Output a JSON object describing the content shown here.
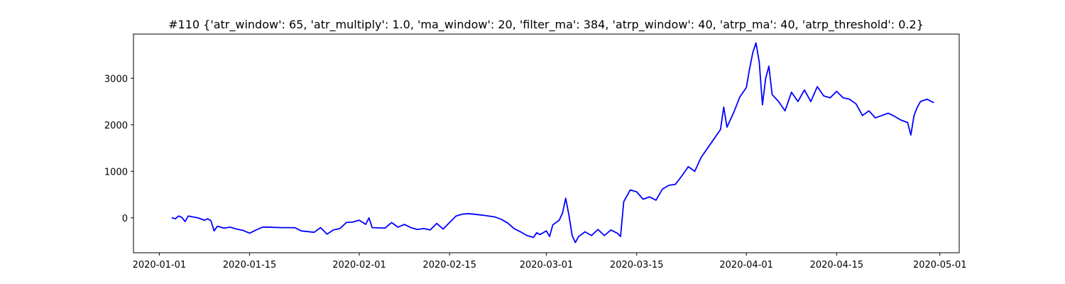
{
  "chart_data": {
    "type": "line",
    "title": "#110 {'atr_window': 65, 'atr_multiply': 1.0, 'ma_window': 20, 'filter_ma': 384, 'atrp_window': 40, 'atrp_ma': 40, 'atrp_threshold': 0.2}",
    "xlabel": "",
    "ylabel": "",
    "x_type": "date",
    "xlim": [
      "2019-12-28",
      "2020-05-04"
    ],
    "ylim": [
      -750,
      3950
    ],
    "grid": false,
    "legend": "none",
    "line_color": "#0000ff",
    "x_ticks": [
      {
        "date": "2020-01-01",
        "label": "2020-01-01"
      },
      {
        "date": "2020-01-15",
        "label": "2020-01-15"
      },
      {
        "date": "2020-02-01",
        "label": "2020-02-01"
      },
      {
        "date": "2020-02-15",
        "label": "2020-02-15"
      },
      {
        "date": "2020-03-01",
        "label": "2020-03-01"
      },
      {
        "date": "2020-03-15",
        "label": "2020-03-15"
      },
      {
        "date": "2020-04-01",
        "label": "2020-04-01"
      },
      {
        "date": "2020-04-15",
        "label": "2020-04-15"
      },
      {
        "date": "2020-05-01",
        "label": "2020-05-01"
      }
    ],
    "y_ticks": [
      {
        "value": 0,
        "label": "0"
      },
      {
        "value": 1000,
        "label": "1000"
      },
      {
        "value": 2000,
        "label": "2000"
      },
      {
        "value": 3000,
        "label": "3000"
      }
    ],
    "series": [
      {
        "color": "#0000ff",
        "points": [
          [
            "2020-01-03",
            0
          ],
          [
            "2020-01-03 12:00",
            -20
          ],
          [
            "2020-01-04",
            40
          ],
          [
            "2020-01-04 12:00",
            10
          ],
          [
            "2020-01-05",
            -80
          ],
          [
            "2020-01-05 12:00",
            40
          ],
          [
            "2020-01-07",
            0
          ],
          [
            "2020-01-08",
            -50
          ],
          [
            "2020-01-08 12:00",
            -20
          ],
          [
            "2020-01-09",
            -60
          ],
          [
            "2020-01-09 12:00",
            -280
          ],
          [
            "2020-01-10",
            -180
          ],
          [
            "2020-01-11",
            -220
          ],
          [
            "2020-01-12",
            -200
          ],
          [
            "2020-01-13",
            -240
          ],
          [
            "2020-01-14",
            -270
          ],
          [
            "2020-01-15",
            -330
          ],
          [
            "2020-01-16",
            -260
          ],
          [
            "2020-01-17",
            -200
          ],
          [
            "2020-01-18",
            -200
          ],
          [
            "2020-01-20",
            -210
          ],
          [
            "2020-01-22",
            -210
          ],
          [
            "2020-01-23",
            -280
          ],
          [
            "2020-01-25",
            -310
          ],
          [
            "2020-01-26",
            -210
          ],
          [
            "2020-01-27",
            -350
          ],
          [
            "2020-01-28",
            -260
          ],
          [
            "2020-01-29",
            -230
          ],
          [
            "2020-01-30",
            -100
          ],
          [
            "2020-01-31",
            -90
          ],
          [
            "2020-02-01",
            -50
          ],
          [
            "2020-02-02",
            -140
          ],
          [
            "2020-02-02 12:00",
            0
          ],
          [
            "2020-02-03",
            -210
          ],
          [
            "2020-02-05",
            -220
          ],
          [
            "2020-02-06",
            -100
          ],
          [
            "2020-02-07",
            -200
          ],
          [
            "2020-02-08",
            -140
          ],
          [
            "2020-02-09",
            -210
          ],
          [
            "2020-02-10",
            -250
          ],
          [
            "2020-02-11",
            -230
          ],
          [
            "2020-02-12",
            -260
          ],
          [
            "2020-02-13",
            -120
          ],
          [
            "2020-02-14",
            -240
          ],
          [
            "2020-02-15",
            -100
          ],
          [
            "2020-02-16",
            40
          ],
          [
            "2020-02-17",
            80
          ],
          [
            "2020-02-18",
            90
          ],
          [
            "2020-02-20",
            60
          ],
          [
            "2020-02-22",
            20
          ],
          [
            "2020-02-23",
            -30
          ],
          [
            "2020-02-24",
            -110
          ],
          [
            "2020-02-25",
            -230
          ],
          [
            "2020-02-26",
            -300
          ],
          [
            "2020-02-27",
            -380
          ],
          [
            "2020-02-28",
            -420
          ],
          [
            "2020-02-28 12:00",
            -320
          ],
          [
            "2020-02-29",
            -360
          ],
          [
            "2020-03-01",
            -280
          ],
          [
            "2020-03-01 12:00",
            -400
          ],
          [
            "2020-03-02",
            -150
          ],
          [
            "2020-03-03",
            -50
          ],
          [
            "2020-03-03 12:00",
            100
          ],
          [
            "2020-03-04",
            420
          ],
          [
            "2020-03-04 12:00",
            60
          ],
          [
            "2020-03-05",
            -380
          ],
          [
            "2020-03-05 12:00",
            -530
          ],
          [
            "2020-03-06",
            -400
          ],
          [
            "2020-03-07",
            -300
          ],
          [
            "2020-03-08",
            -380
          ],
          [
            "2020-03-09",
            -250
          ],
          [
            "2020-03-10",
            -380
          ],
          [
            "2020-03-11",
            -260
          ],
          [
            "2020-03-12",
            -330
          ],
          [
            "2020-03-12 12:00",
            -400
          ],
          [
            "2020-03-13",
            350
          ],
          [
            "2020-03-14",
            600
          ],
          [
            "2020-03-15",
            560
          ],
          [
            "2020-03-16",
            400
          ],
          [
            "2020-03-17",
            450
          ],
          [
            "2020-03-18",
            380
          ],
          [
            "2020-03-19",
            620
          ],
          [
            "2020-03-20",
            700
          ],
          [
            "2020-03-21",
            720
          ],
          [
            "2020-03-22",
            900
          ],
          [
            "2020-03-23",
            1100
          ],
          [
            "2020-03-24",
            1000
          ],
          [
            "2020-03-25",
            1300
          ],
          [
            "2020-03-26",
            1500
          ],
          [
            "2020-03-27",
            1700
          ],
          [
            "2020-03-28",
            1900
          ],
          [
            "2020-03-28 12:00",
            2380
          ],
          [
            "2020-03-29",
            1950
          ],
          [
            "2020-03-30",
            2250
          ],
          [
            "2020-03-31",
            2600
          ],
          [
            "2020-04-01",
            2800
          ],
          [
            "2020-04-01 12:00",
            3200
          ],
          [
            "2020-04-02",
            3550
          ],
          [
            "2020-04-02 12:00",
            3760
          ],
          [
            "2020-04-03",
            3350
          ],
          [
            "2020-04-03 12:00",
            2430
          ],
          [
            "2020-04-04",
            3000
          ],
          [
            "2020-04-04 12:00",
            3260
          ],
          [
            "2020-04-05",
            2650
          ],
          [
            "2020-04-06",
            2500
          ],
          [
            "2020-04-07",
            2300
          ],
          [
            "2020-04-08",
            2700
          ],
          [
            "2020-04-09",
            2500
          ],
          [
            "2020-04-10",
            2750
          ],
          [
            "2020-04-11",
            2500
          ],
          [
            "2020-04-12",
            2820
          ],
          [
            "2020-04-13",
            2620
          ],
          [
            "2020-04-14",
            2580
          ],
          [
            "2020-04-15",
            2720
          ],
          [
            "2020-04-16",
            2580
          ],
          [
            "2020-04-17",
            2550
          ],
          [
            "2020-04-18",
            2450
          ],
          [
            "2020-04-19",
            2200
          ],
          [
            "2020-04-20",
            2300
          ],
          [
            "2020-04-21",
            2150
          ],
          [
            "2020-04-22",
            2200
          ],
          [
            "2020-04-23",
            2250
          ],
          [
            "2020-04-24",
            2180
          ],
          [
            "2020-04-25",
            2100
          ],
          [
            "2020-04-26",
            2050
          ],
          [
            "2020-04-26 12:00",
            1780
          ],
          [
            "2020-04-27",
            2200
          ],
          [
            "2020-04-27 12:00",
            2380
          ],
          [
            "2020-04-28",
            2500
          ],
          [
            "2020-04-29",
            2550
          ],
          [
            "2020-04-30",
            2480
          ]
        ]
      }
    ]
  }
}
